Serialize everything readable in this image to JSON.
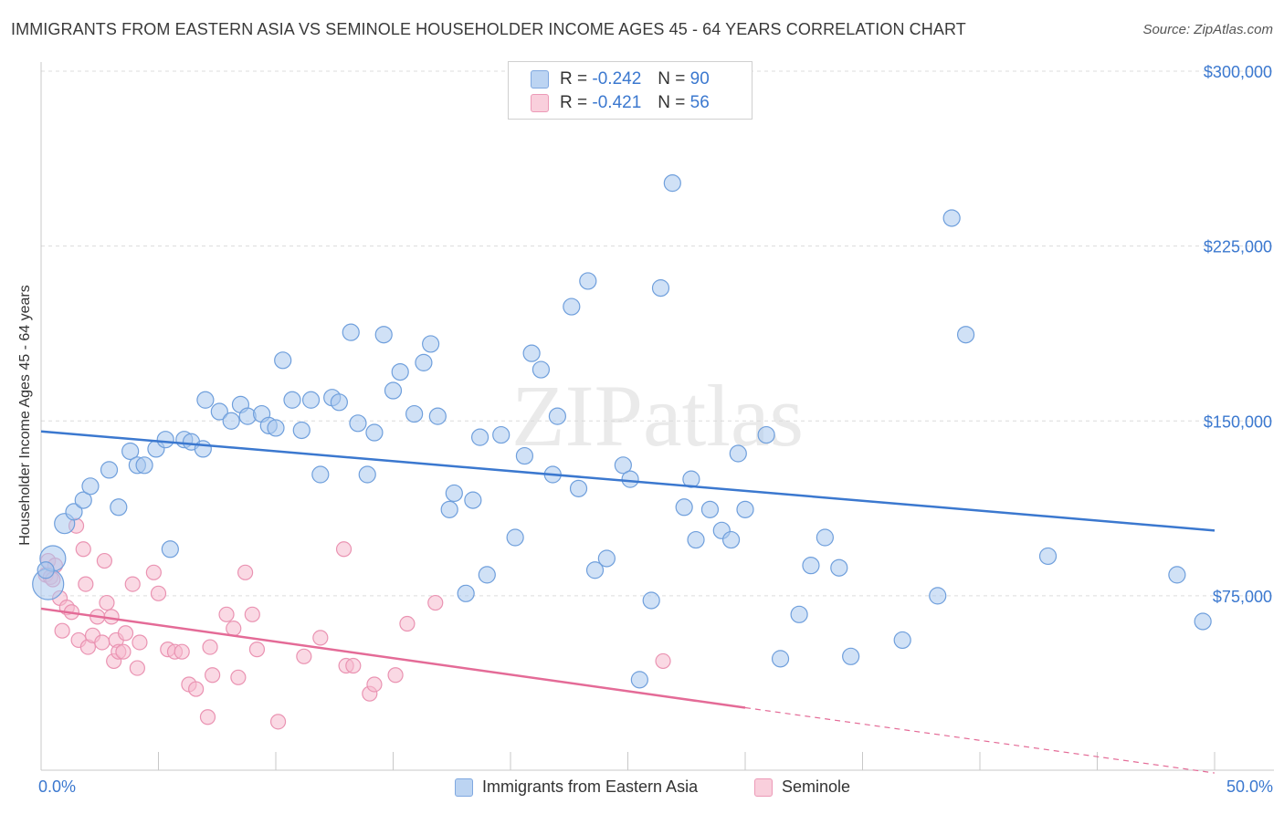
{
  "title": "IMMIGRANTS FROM EASTERN ASIA VS SEMINOLE HOUSEHOLDER INCOME AGES 45 - 64 YEARS CORRELATION CHART",
  "source": "Source: ZipAtlas.com",
  "watermark": "ZIPatlas",
  "legend": {
    "rows": [
      {
        "r_label": "R =",
        "r_value": "-0.242",
        "n_label": "N =",
        "n_value": "90"
      },
      {
        "r_label": "R =",
        "r_value": "-0.421",
        "n_label": "N =",
        "n_value": "56"
      }
    ]
  },
  "axis": {
    "ylabel": "Householder Income Ages 45 - 64 years",
    "x_min_label": "0.0%",
    "x_max_label": "50.0%"
  },
  "colors": {
    "blue": "#3b78cf",
    "blue_fill": "#a9c8ee",
    "pink": "#e46b97",
    "pink_fill": "#f6b9cd",
    "grid": "#dcdcdc",
    "tick_label": "#3b78cf"
  },
  "chart_data": {
    "type": "scatter",
    "xlabel": "",
    "ylabel": "Householder Income Ages 45 - 64 years",
    "xlim": [
      0,
      50
    ],
    "ylim": [
      0,
      310000
    ],
    "y_ticks": [
      {
        "value": 75000,
        "label": "$75,000"
      },
      {
        "value": 150000,
        "label": "$150,000"
      },
      {
        "value": 225000,
        "label": "$225,000"
      },
      {
        "value": 300000,
        "label": "$300,000"
      }
    ],
    "grid": true,
    "legend_position": "top-center",
    "series": [
      {
        "name": "Immigrants from Eastern Asia",
        "color": "#3b78cf",
        "trend": {
          "x": [
            0,
            50
          ],
          "y": [
            145500,
            103000
          ]
        },
        "points": [
          [
            0.3,
            80000
          ],
          [
            0.5,
            91000
          ],
          [
            1.0,
            106000
          ],
          [
            1.4,
            111000
          ],
          [
            1.8,
            116000
          ],
          [
            2.1,
            122000
          ],
          [
            2.9,
            129000
          ],
          [
            3.3,
            113000
          ],
          [
            3.8,
            137000
          ],
          [
            4.1,
            131000
          ],
          [
            4.4,
            131000
          ],
          [
            4.9,
            138000
          ],
          [
            5.3,
            142000
          ],
          [
            5.5,
            95000
          ],
          [
            6.1,
            142000
          ],
          [
            6.4,
            141000
          ],
          [
            6.9,
            138000
          ],
          [
            7.0,
            159000
          ],
          [
            7.6,
            154000
          ],
          [
            8.1,
            150000
          ],
          [
            8.5,
            157000
          ],
          [
            8.8,
            152000
          ],
          [
            9.4,
            153000
          ],
          [
            9.7,
            148000
          ],
          [
            10.0,
            147000
          ],
          [
            10.3,
            176000
          ],
          [
            10.7,
            159000
          ],
          [
            11.1,
            146000
          ],
          [
            11.5,
            159000
          ],
          [
            11.9,
            127000
          ],
          [
            12.4,
            160000
          ],
          [
            12.7,
            158000
          ],
          [
            13.2,
            188000
          ],
          [
            13.5,
            149000
          ],
          [
            13.9,
            127000
          ],
          [
            14.2,
            145000
          ],
          [
            14.6,
            187000
          ],
          [
            15.0,
            163000
          ],
          [
            15.3,
            171000
          ],
          [
            15.9,
            153000
          ],
          [
            16.3,
            175000
          ],
          [
            16.6,
            183000
          ],
          [
            16.9,
            152000
          ],
          [
            17.4,
            112000
          ],
          [
            17.6,
            119000
          ],
          [
            18.1,
            76000
          ],
          [
            18.4,
            116000
          ],
          [
            18.7,
            143000
          ],
          [
            19.0,
            84000
          ],
          [
            19.6,
            144000
          ],
          [
            20.2,
            100000
          ],
          [
            20.6,
            135000
          ],
          [
            20.9,
            179000
          ],
          [
            21.3,
            172000
          ],
          [
            21.8,
            127000
          ],
          [
            22.0,
            152000
          ],
          [
            22.6,
            199000
          ],
          [
            22.9,
            121000
          ],
          [
            23.3,
            210000
          ],
          [
            23.6,
            86000
          ],
          [
            24.1,
            91000
          ],
          [
            24.8,
            131000
          ],
          [
            25.1,
            125000
          ],
          [
            25.5,
            39000
          ],
          [
            26.0,
            73000
          ],
          [
            26.4,
            207000
          ],
          [
            26.9,
            252000
          ],
          [
            27.4,
            113000
          ],
          [
            27.7,
            125000
          ],
          [
            27.9,
            99000
          ],
          [
            28.5,
            112000
          ],
          [
            29.0,
            103000
          ],
          [
            29.4,
            99000
          ],
          [
            29.7,
            136000
          ],
          [
            30.0,
            112000
          ],
          [
            30.9,
            144000
          ],
          [
            31.5,
            48000
          ],
          [
            32.3,
            67000
          ],
          [
            32.8,
            88000
          ],
          [
            33.4,
            100000
          ],
          [
            34.0,
            87000
          ],
          [
            34.5,
            49000
          ],
          [
            36.7,
            56000
          ],
          [
            38.2,
            75000
          ],
          [
            38.8,
            237000
          ],
          [
            39.4,
            187000
          ],
          [
            42.9,
            92000
          ],
          [
            48.4,
            84000
          ],
          [
            49.5,
            64000
          ],
          [
            0.2,
            86000
          ]
        ]
      },
      {
        "name": "Seminole",
        "color": "#e46b97",
        "trend": {
          "x": [
            0,
            30
          ],
          "y": [
            69500,
            27000
          ],
          "dashed_to": {
            "x": 50,
            "y": -1000
          }
        },
        "points": [
          [
            0.2,
            84000
          ],
          [
            0.3,
            90000
          ],
          [
            0.4,
            83000
          ],
          [
            0.5,
            82000
          ],
          [
            0.6,
            88000
          ],
          [
            0.8,
            74000
          ],
          [
            0.9,
            60000
          ],
          [
            1.1,
            70000
          ],
          [
            1.3,
            68000
          ],
          [
            1.5,
            105000
          ],
          [
            1.6,
            56000
          ],
          [
            1.8,
            95000
          ],
          [
            1.9,
            80000
          ],
          [
            2.0,
            53000
          ],
          [
            2.2,
            58000
          ],
          [
            2.4,
            66000
          ],
          [
            2.6,
            55000
          ],
          [
            2.7,
            90000
          ],
          [
            2.8,
            72000
          ],
          [
            3.0,
            66000
          ],
          [
            3.1,
            47000
          ],
          [
            3.2,
            56000
          ],
          [
            3.3,
            51000
          ],
          [
            3.5,
            51000
          ],
          [
            3.6,
            59000
          ],
          [
            3.9,
            80000
          ],
          [
            4.1,
            44000
          ],
          [
            4.2,
            55000
          ],
          [
            4.8,
            85000
          ],
          [
            5.0,
            76000
          ],
          [
            5.4,
            52000
          ],
          [
            5.7,
            51000
          ],
          [
            6.0,
            51000
          ],
          [
            6.3,
            37000
          ],
          [
            6.6,
            35000
          ],
          [
            7.1,
            23000
          ],
          [
            7.2,
            53000
          ],
          [
            7.3,
            41000
          ],
          [
            7.9,
            67000
          ],
          [
            8.2,
            61000
          ],
          [
            8.4,
            40000
          ],
          [
            8.7,
            85000
          ],
          [
            9.0,
            67000
          ],
          [
            9.2,
            52000
          ],
          [
            10.1,
            21000
          ],
          [
            11.2,
            49000
          ],
          [
            11.9,
            57000
          ],
          [
            12.9,
            95000
          ],
          [
            13.0,
            45000
          ],
          [
            13.3,
            45000
          ],
          [
            14.0,
            33000
          ],
          [
            14.2,
            37000
          ],
          [
            15.1,
            41000
          ],
          [
            15.6,
            63000
          ],
          [
            16.8,
            72000
          ],
          [
            26.5,
            47000
          ]
        ]
      }
    ]
  }
}
